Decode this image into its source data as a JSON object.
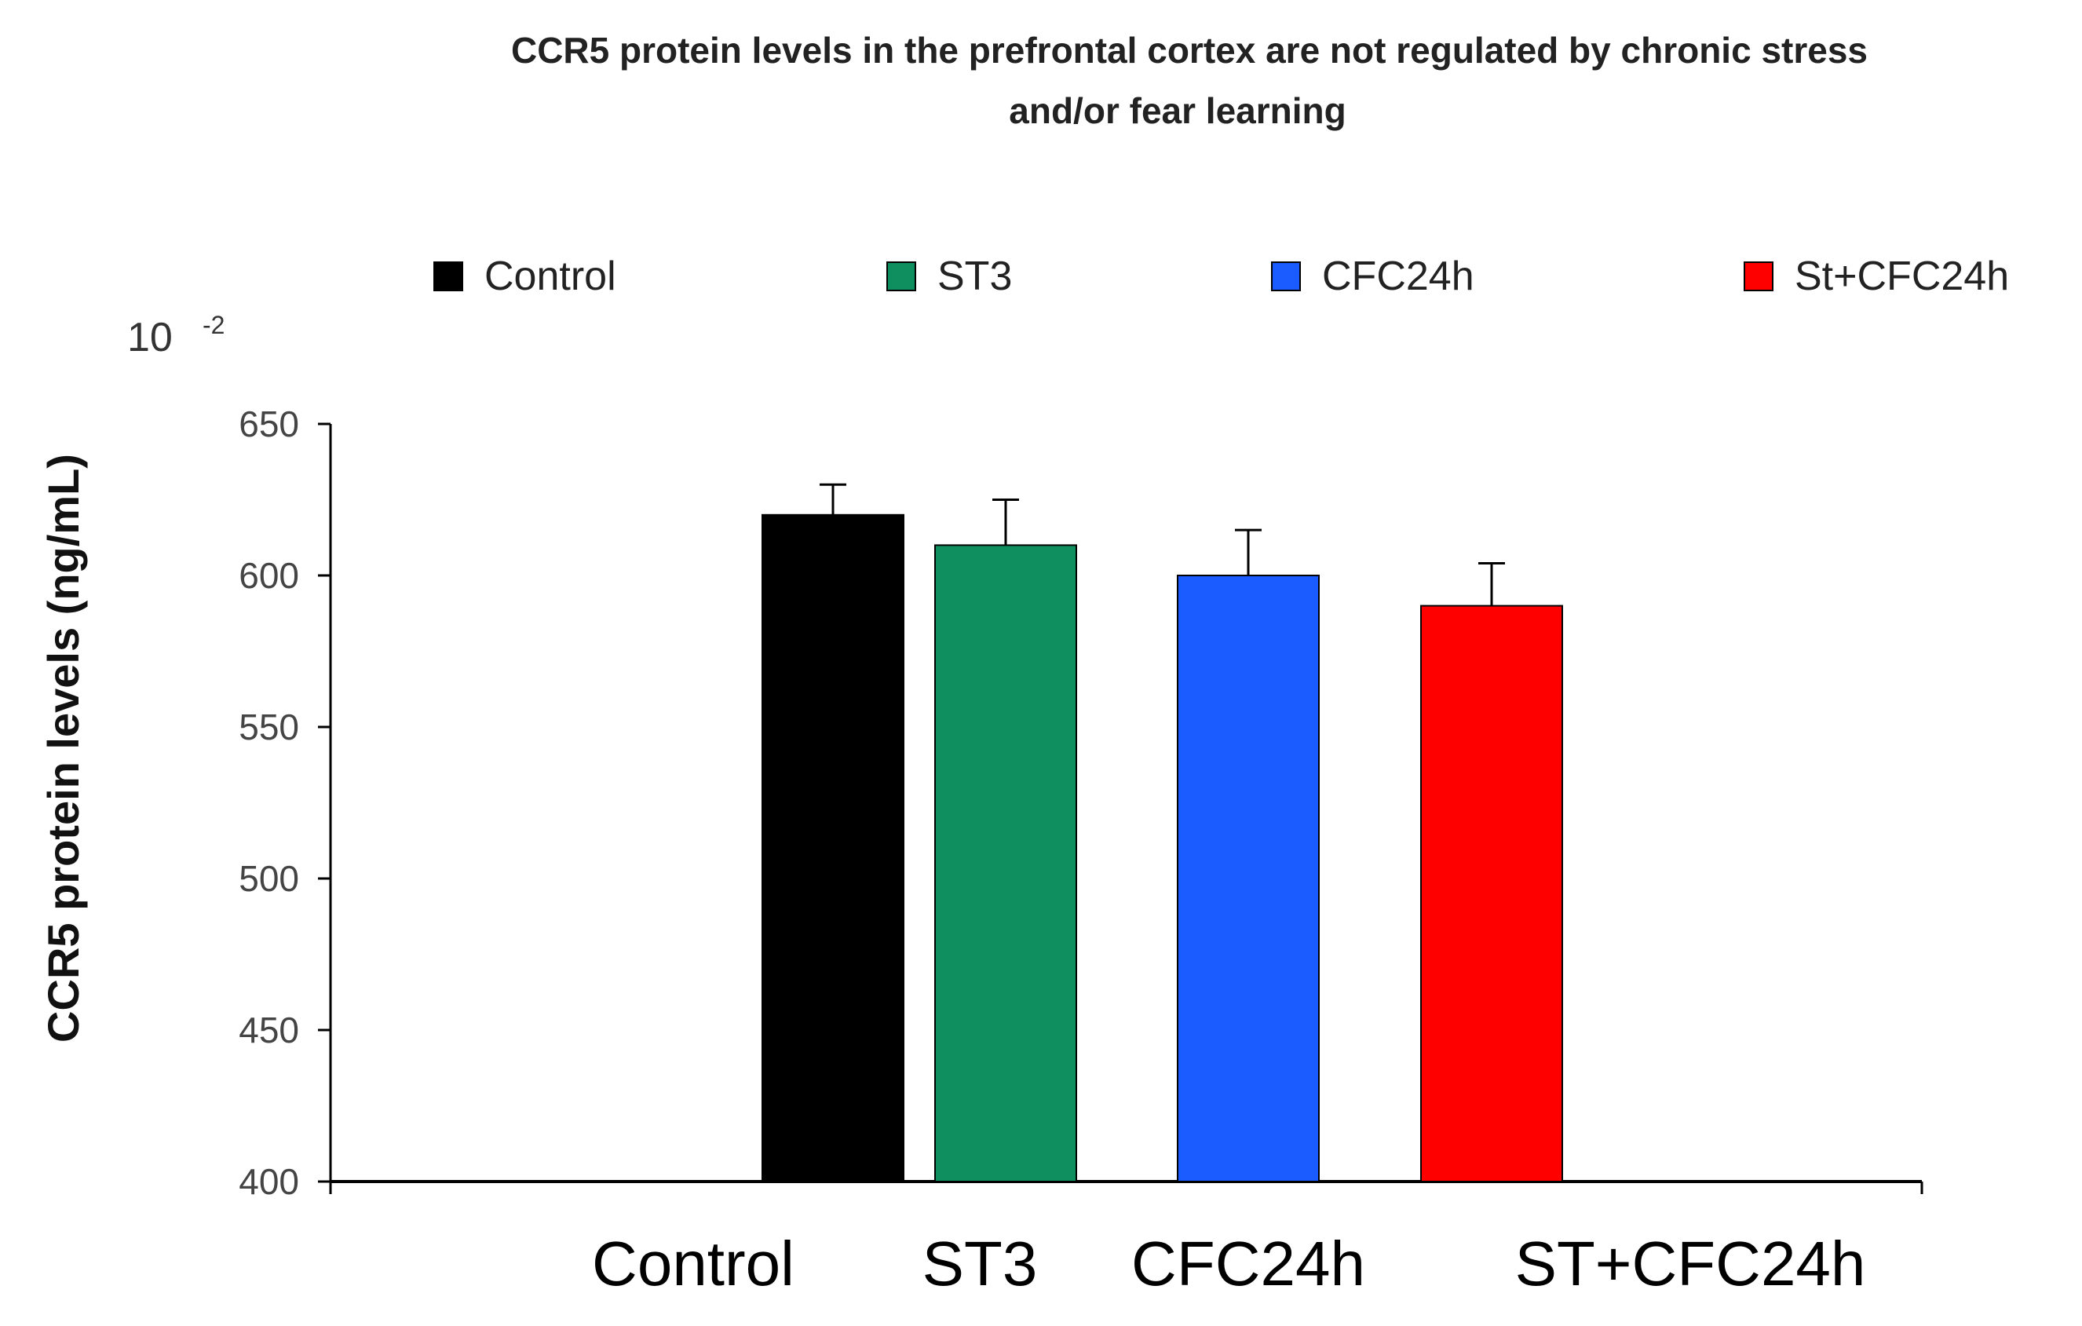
{
  "chart_data": {
    "type": "bar",
    "title_lines": [
      "CCR5 protein levels in the prefrontal cortex are not regulated by chronic stress",
      "and/or fear learning"
    ],
    "ylabel": "CCR5 protein levels (ng/mL)",
    "y_multiplier_base": "10",
    "y_multiplier_exponent": "-2",
    "ylim": [
      400,
      650
    ],
    "yticks": [
      400,
      450,
      500,
      550,
      600,
      650
    ],
    "categories": [
      "Control",
      "ST3",
      "CFC24h",
      "ST+CFC24h"
    ],
    "legend": [
      "Control",
      "ST3",
      "CFC24h",
      "St+CFC24h"
    ],
    "legend_position": "top",
    "values": [
      620,
      610,
      600,
      590
    ],
    "errors": [
      10,
      15,
      15,
      14
    ],
    "colors": [
      "#000000",
      "#0f8f5f",
      "#1a5cff",
      "#ff0000"
    ],
    "grid": false
  }
}
